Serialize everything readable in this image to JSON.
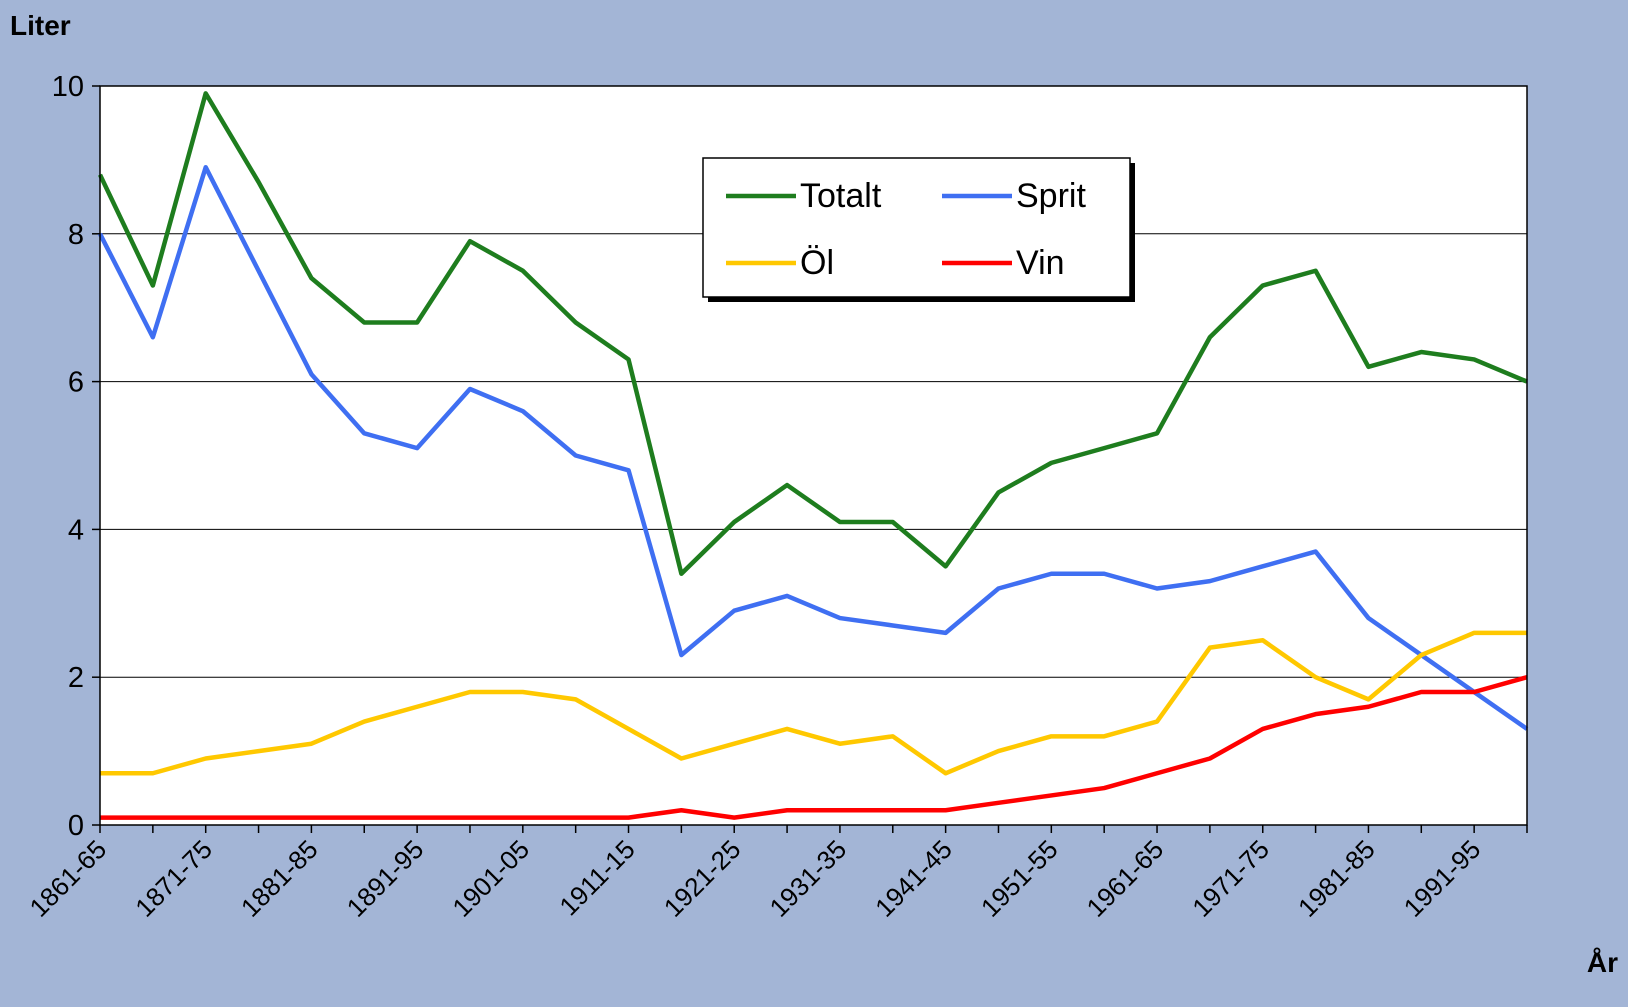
{
  "chart_data": {
    "type": "line",
    "y_label": "Liter",
    "x_label": "År",
    "categories": [
      "1861-65",
      null,
      "1871-75",
      null,
      "1881-85",
      null,
      "1891-95",
      null,
      "1901-05",
      null,
      "1911-15",
      null,
      "1921-25",
      null,
      "1931-35",
      null,
      "1941-45",
      null,
      "1951-55",
      null,
      "1961-65",
      null,
      "1971-75",
      null,
      "1981-85",
      null,
      "1991-95",
      null
    ],
    "series": [
      {
        "name": "Totalt",
        "color": "#1e7d1e",
        "values": [
          8.8,
          7.3,
          9.9,
          8.7,
          7.4,
          6.8,
          6.8,
          7.9,
          7.5,
          6.8,
          6.3,
          3.4,
          4.1,
          4.6,
          4.1,
          4.1,
          3.5,
          4.5,
          4.9,
          5.1,
          5.3,
          6.6,
          7.3,
          7.5,
          6.2,
          6.4,
          6.3,
          6.0
        ]
      },
      {
        "name": "Sprit",
        "color": "#3f6ff2",
        "values": [
          8.0,
          6.6,
          8.9,
          7.5,
          6.1,
          5.3,
          5.1,
          5.9,
          5.6,
          5.0,
          4.8,
          2.3,
          2.9,
          3.1,
          2.8,
          2.7,
          2.6,
          3.2,
          3.4,
          3.4,
          3.2,
          3.3,
          3.5,
          3.7,
          2.8,
          2.3,
          1.8,
          1.3
        ]
      },
      {
        "name": "Öl",
        "color": "#ffc800",
        "values": [
          0.7,
          0.7,
          0.9,
          1.0,
          1.1,
          1.4,
          1.6,
          1.8,
          1.8,
          1.7,
          1.3,
          0.9,
          1.1,
          1.3,
          1.1,
          1.2,
          0.7,
          1.0,
          1.2,
          1.2,
          1.4,
          2.4,
          2.5,
          2.0,
          1.7,
          2.3,
          2.6,
          2.6
        ]
      },
      {
        "name": "Vin",
        "color": "#ff0000",
        "values": [
          0.1,
          0.1,
          0.1,
          0.1,
          0.1,
          0.1,
          0.1,
          0.1,
          0.1,
          0.1,
          0.1,
          0.2,
          0.1,
          0.2,
          0.2,
          0.2,
          0.2,
          0.3,
          0.4,
          0.5,
          0.7,
          0.9,
          1.3,
          1.5,
          1.6,
          1.8,
          1.8,
          2.0
        ]
      }
    ],
    "ylim": [
      0,
      10
    ],
    "yticks": [
      0,
      2,
      4,
      6,
      8,
      10
    ],
    "grid": true
  }
}
